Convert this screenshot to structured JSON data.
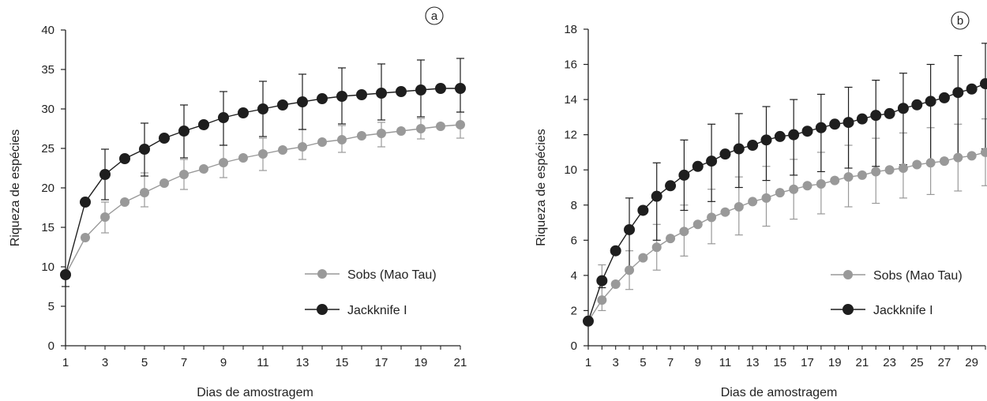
{
  "colors": {
    "sobs": "#999999",
    "jack": "#1e1e1e",
    "axis": "#222222"
  },
  "chart_data": [
    {
      "type": "line",
      "panel": "a",
      "xlabel": "Dias de amostragem",
      "ylabel": "Riqueza de espécies",
      "xlim": [
        1,
        21
      ],
      "ylim": [
        0,
        40
      ],
      "xticks": [
        1,
        3,
        5,
        7,
        9,
        11,
        13,
        15,
        17,
        19,
        21
      ],
      "yticks": [
        0,
        5,
        10,
        15,
        20,
        25,
        30,
        35,
        40
      ],
      "legend_position": "lower-right",
      "x": [
        1,
        2,
        3,
        4,
        5,
        6,
        7,
        8,
        9,
        10,
        11,
        12,
        13,
        14,
        15,
        16,
        17,
        18,
        19,
        20,
        21
      ],
      "series": [
        {
          "name": "Sobs (Mao Tau)",
          "values": [
            9,
            13.7,
            16.3,
            18.2,
            19.4,
            20.6,
            21.7,
            22.4,
            23.2,
            23.8,
            24.3,
            24.8,
            25.2,
            25.8,
            26.1,
            26.6,
            26.9,
            27.2,
            27.5,
            27.8,
            28.0
          ],
          "error_x": [
            3,
            5,
            7,
            9,
            11,
            13,
            15,
            17,
            19,
            21
          ],
          "error_upper": [
            18.2,
            21.9,
            23.6,
            25.4,
            26.3,
            27.4,
            27.9,
            28.3,
            28.8,
            29.6
          ],
          "error_lower": [
            14.3,
            17.6,
            19.8,
            21.3,
            22.2,
            23.6,
            24.5,
            25.2,
            26.2,
            26.3
          ]
        },
        {
          "name": "Jackknife I",
          "values": [
            9,
            18.2,
            21.7,
            23.7,
            24.9,
            26.3,
            27.2,
            28.0,
            28.9,
            29.5,
            30.0,
            30.5,
            30.9,
            31.3,
            31.6,
            31.8,
            32.0,
            32.2,
            32.4,
            32.6,
            32.6
          ],
          "error_x": [
            1,
            3,
            5,
            7,
            9,
            11,
            13,
            15,
            17,
            19,
            21
          ],
          "error_upper": [
            9,
            24.9,
            28.2,
            30.5,
            32.2,
            33.5,
            34.4,
            35.2,
            35.7,
            36.2,
            36.4
          ],
          "error_lower": [
            7.5,
            18.5,
            21.5,
            23.8,
            25.4,
            26.5,
            27.4,
            28.1,
            28.6,
            29.0,
            29.6
          ]
        }
      ]
    },
    {
      "type": "line",
      "panel": "b",
      "xlabel": "Dias de amostragem",
      "ylabel": "Riqueza de espécies",
      "xlim": [
        1,
        30
      ],
      "ylim": [
        0,
        18
      ],
      "xticks": [
        1,
        3,
        5,
        7,
        9,
        11,
        13,
        15,
        17,
        19,
        21,
        23,
        25,
        27,
        29
      ],
      "yticks": [
        0,
        2,
        4,
        6,
        8,
        10,
        12,
        14,
        16,
        18
      ],
      "legend_position": "lower-right",
      "x": [
        1,
        2,
        3,
        4,
        5,
        6,
        7,
        8,
        9,
        10,
        11,
        12,
        13,
        14,
        15,
        16,
        17,
        18,
        19,
        20,
        21,
        22,
        23,
        24,
        25,
        26,
        27,
        28,
        29,
        30
      ],
      "series": [
        {
          "name": "Sobs (Mao Tau)",
          "values": [
            1.4,
            2.6,
            3.5,
            4.3,
            5.0,
            5.6,
            6.1,
            6.5,
            6.9,
            7.3,
            7.6,
            7.9,
            8.2,
            8.4,
            8.7,
            8.9,
            9.1,
            9.2,
            9.4,
            9.6,
            9.7,
            9.9,
            10.0,
            10.1,
            10.3,
            10.4,
            10.5,
            10.7,
            10.8,
            11.0
          ],
          "error_x": [
            2,
            4,
            6,
            8,
            10,
            12,
            14,
            16,
            18,
            20,
            22,
            24,
            26,
            28,
            30
          ],
          "error_upper": [
            4.6,
            5.4,
            6.9,
            8.0,
            8.9,
            9.6,
            10.2,
            10.6,
            11.0,
            11.4,
            11.8,
            12.1,
            12.4,
            12.6,
            12.9
          ],
          "error_lower": [
            2.0,
            3.2,
            4.3,
            5.1,
            5.8,
            6.3,
            6.8,
            7.2,
            7.5,
            7.9,
            8.1,
            8.4,
            8.6,
            8.8,
            9.1
          ]
        },
        {
          "name": "Jackknife I",
          "values": [
            1.4,
            3.7,
            5.4,
            6.6,
            7.7,
            8.5,
            9.1,
            9.7,
            10.2,
            10.5,
            10.9,
            11.2,
            11.4,
            11.7,
            11.9,
            12.0,
            12.2,
            12.4,
            12.6,
            12.7,
            12.9,
            13.1,
            13.2,
            13.5,
            13.7,
            13.9,
            14.1,
            14.4,
            14.6,
            14.9
          ],
          "error_x": [
            2,
            4,
            6,
            8,
            10,
            12,
            14,
            16,
            18,
            20,
            22,
            24,
            26,
            28,
            30
          ],
          "error_upper": [
            3.7,
            8.4,
            10.4,
            11.7,
            12.6,
            13.2,
            13.6,
            14.0,
            14.3,
            14.7,
            15.1,
            15.5,
            16.0,
            16.5,
            17.2
          ],
          "error_lower": [
            3.3,
            4.2,
            6.0,
            7.7,
            8.2,
            9.0,
            9.4,
            9.7,
            9.9,
            10.1,
            10.2,
            10.3,
            10.5,
            10.8,
            11.2
          ]
        }
      ]
    }
  ]
}
